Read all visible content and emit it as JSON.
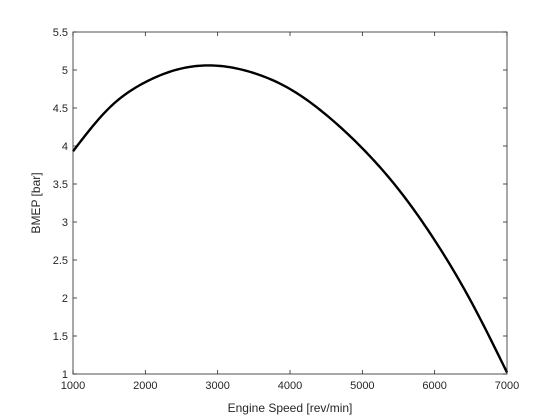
{
  "chart_data": {
    "type": "line",
    "xlabel": "Engine Speed [rev/min]",
    "ylabel": "BMEP [bar]",
    "xlim": [
      1000,
      7000
    ],
    "ylim": [
      1,
      5.5
    ],
    "xticks": [
      1000,
      2000,
      3000,
      4000,
      5000,
      6000,
      7000
    ],
    "yticks": [
      1,
      1.5,
      2,
      2.5,
      3,
      3.5,
      4,
      4.5,
      5,
      5.5
    ],
    "grid": false,
    "series": [
      {
        "color": "#000000",
        "x": [
          1000,
          1500,
          2000,
          2500,
          2900,
          3500,
          4000,
          4500,
          5000,
          5500,
          6000,
          6500,
          7000
        ],
        "y": [
          3.93,
          4.5,
          4.84,
          5.02,
          5.06,
          4.96,
          4.75,
          4.41,
          3.97,
          3.43,
          2.76,
          1.96,
          1.02
        ]
      }
    ]
  }
}
